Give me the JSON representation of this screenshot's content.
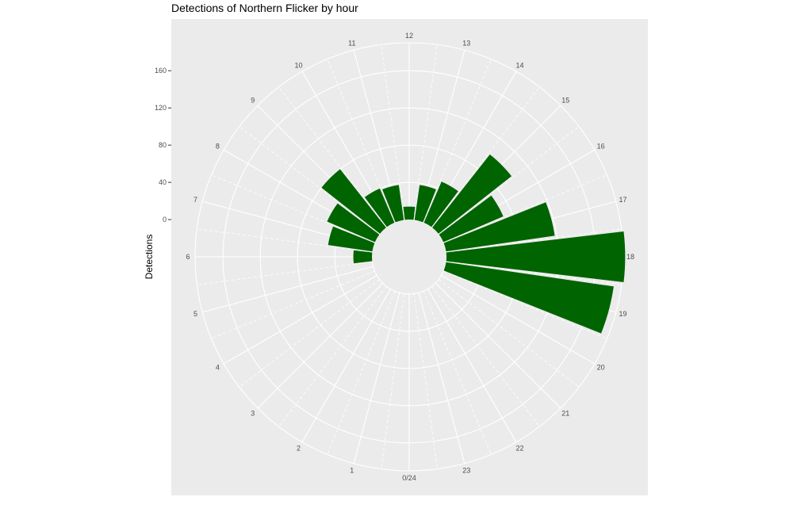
{
  "chart_data": {
    "type": "bar",
    "coordinate_system": "polar",
    "title": "Detections of Northern Flicker by hour",
    "xlabel": "",
    "ylabel": "Detections",
    "categories": [
      "0/24",
      "1",
      "2",
      "3",
      "4",
      "5",
      "6",
      "7",
      "8",
      "9",
      "10",
      "11",
      "12",
      "13",
      "14",
      "15",
      "16",
      "17",
      "18",
      "19",
      "20",
      "21",
      "22",
      "23"
    ],
    "values": [
      0,
      0,
      0,
      0,
      0,
      0,
      20,
      48,
      56,
      80,
      40,
      38,
      14,
      38,
      48,
      100,
      70,
      118,
      192,
      182,
      0,
      0,
      0,
      0
    ],
    "ylim": [
      -40,
      190
    ],
    "y_ticks": [
      0,
      40,
      80,
      120,
      160
    ],
    "bar_color": "#006400",
    "panel_background": "#ebebeb",
    "grid": true,
    "legend": "none"
  }
}
